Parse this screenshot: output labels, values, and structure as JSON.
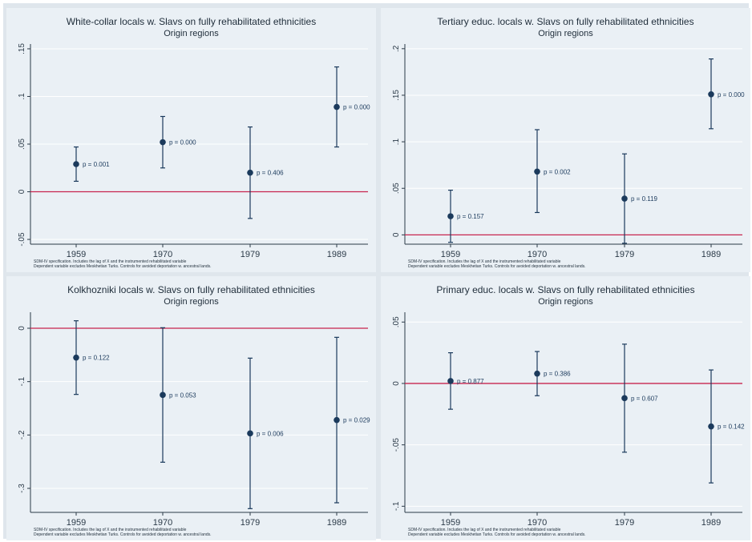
{
  "colors": {
    "point": "#1b3a5c",
    "zero_line": "#c7244e",
    "axis": "#2b3a48",
    "plot_bg": "#eaf0f5",
    "outer_bg": "#dfe6ec",
    "grid": "#ffffff"
  },
  "chart_data": [
    {
      "type": "scatter",
      "title": "White-collar locals w. Slavs on fully rehabilitated ethnicities",
      "subtitle": "Origin regions",
      "categories": [
        "1959",
        "1970",
        "1979",
        "1989"
      ],
      "estimates": [
        0.029,
        0.052,
        0.02,
        0.089
      ],
      "ci_low": [
        0.011,
        0.025,
        -0.028,
        0.047
      ],
      "ci_high": [
        0.047,
        0.079,
        0.068,
        0.131
      ],
      "p_labels": [
        "p = 0.001",
        "p = 0.000",
        "p = 0.406",
        "p = 0.000"
      ],
      "ylim": [
        -0.055,
        0.155
      ],
      "yticks": [
        -0.05,
        0,
        0.05,
        0.1,
        0.15
      ],
      "ytick_labels": [
        "-.05",
        "0",
        ".05",
        ".1",
        ".15"
      ],
      "reference_line": 0,
      "grid": true,
      "note_line1": "SDM-IV specification. Includes the lag of X and the instrumented rehabilitated variable",
      "note_line2": "Dependent variable excludes Meskhetian Turks. Controls for avoided deportation w. ancestral lands."
    },
    {
      "type": "scatter",
      "title": "Tertiary educ. locals w. Slavs on fully rehabilitated ethnicities",
      "subtitle": "Origin regions",
      "categories": [
        "1959",
        "1970",
        "1979",
        "1989"
      ],
      "estimates": [
        0.02,
        0.068,
        0.039,
        0.151
      ],
      "ci_low": [
        -0.008,
        0.024,
        -0.009,
        0.114
      ],
      "ci_high": [
        0.048,
        0.113,
        0.087,
        0.189
      ],
      "p_labels": [
        "p = 0.157",
        "p = 0.002",
        "p = 0.119",
        "p = 0.000"
      ],
      "ylim": [
        -0.01,
        0.205
      ],
      "yticks": [
        0,
        0.05,
        0.1,
        0.15,
        0.2
      ],
      "ytick_labels": [
        "0",
        ".05",
        ".1",
        ".15",
        ".2"
      ],
      "reference_line": 0,
      "grid": true,
      "note_line1": "SDM-IV specification. Includes the lag of X and the instrumented rehabilitated variable",
      "note_line2": "Dependent variable excludes Meskhetian Turks. Controls for avoided deportation w. ancestral lands."
    },
    {
      "type": "scatter",
      "title": "Kolkhozniki locals w. Slavs on fully rehabilitated ethnicities",
      "subtitle": "Origin regions",
      "categories": [
        "1959",
        "1970",
        "1979",
        "1989"
      ],
      "estimates": [
        -0.055,
        -0.125,
        -0.197,
        -0.172
      ],
      "ci_low": [
        -0.124,
        -0.251,
        -0.338,
        -0.327
      ],
      "ci_high": [
        0.014,
        0.001,
        -0.056,
        -0.017
      ],
      "p_labels": [
        "p = 0.122",
        "p = 0.053",
        "p = 0.006",
        "p = 0.029"
      ],
      "ylim": [
        -0.345,
        0.03
      ],
      "yticks": [
        -0.3,
        -0.2,
        -0.1,
        0
      ],
      "ytick_labels": [
        "-.3",
        "-.2",
        "-.1",
        "0"
      ],
      "reference_line": 0,
      "grid": true,
      "note_line1": "SDM-IV specification. Includes the lag of X and the instrumented rehabilitated variable",
      "note_line2": "Dependent variable excludes Meskhetian Turks. Controls for avoided deportation w. ancestral lands."
    },
    {
      "type": "scatter",
      "title": "Primary educ. locals w. Slavs on fully rehabilitated ethnicities",
      "subtitle": "Origin regions",
      "categories": [
        "1959",
        "1970",
        "1979",
        "1989"
      ],
      "estimates": [
        0.002,
        0.008,
        -0.012,
        -0.035
      ],
      "ci_low": [
        -0.021,
        -0.01,
        -0.056,
        -0.081
      ],
      "ci_high": [
        0.025,
        0.026,
        0.032,
        0.011
      ],
      "p_labels": [
        "p = 0.877",
        "p = 0.386",
        "p = 0.607",
        "p = 0.142"
      ],
      "ylim": [
        -0.105,
        0.058
      ],
      "yticks": [
        -0.1,
        -0.05,
        0,
        0.05
      ],
      "ytick_labels": [
        "-.1",
        "-.05",
        "0",
        ".05"
      ],
      "reference_line": 0,
      "grid": true,
      "note_line1": "SDM-IV specification. Includes the lag of X and the instrumented rehabilitated variable",
      "note_line2": "Dependent variable excludes Meskhetian Turks. Controls for avoided deportation w. ancestral lands."
    }
  ]
}
